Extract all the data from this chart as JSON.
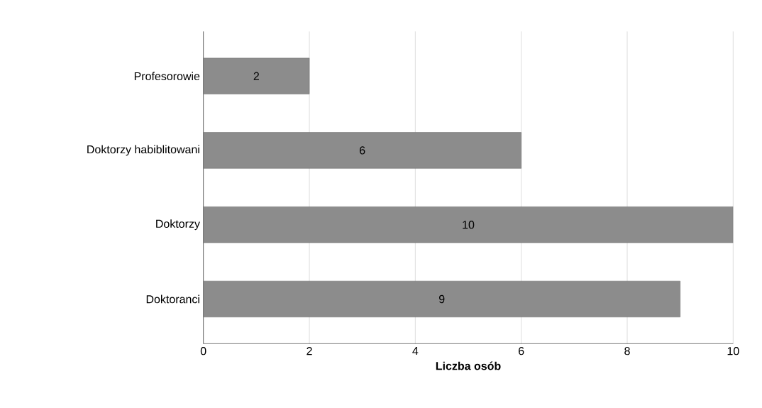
{
  "chart_data": {
    "type": "bar",
    "orientation": "horizontal",
    "categories": [
      "Profesorowie",
      "Doktorzy habiblitowani",
      "Doktorzy",
      "Doktoranci"
    ],
    "values": [
      2,
      6,
      10,
      9
    ],
    "color": "#8c8c8c",
    "xlim": [
      0,
      10
    ],
    "xticks": [
      0,
      2,
      4,
      6,
      8,
      10
    ],
    "xlabel": "Liczba osób",
    "grid": "x",
    "data_labels": true
  }
}
